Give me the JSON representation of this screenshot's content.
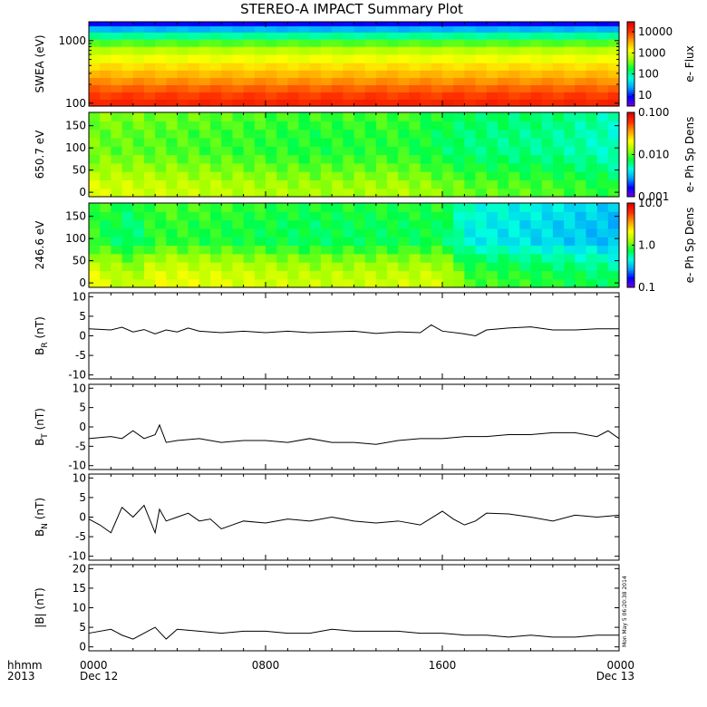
{
  "title": "STEREO-A IMPACT Summary Plot",
  "stamp": "Mon May  5 06:20:38 2014",
  "time_axis": {
    "row1": "hhmm",
    "row2": "2013",
    "ticks": [
      {
        "hour": 0,
        "label": "0000",
        "sub": "Dec 12"
      },
      {
        "hour": 8,
        "label": "0800",
        "sub": ""
      },
      {
        "hour": 16,
        "label": "1600",
        "sub": ""
      },
      {
        "hour": 24,
        "label": "0000",
        "sub": "Dec 13"
      }
    ]
  },
  "colors": {
    "axis": "#000000",
    "background": "#ffffff",
    "line": "#000000",
    "colormap": [
      "#7a00e0",
      "#0000ff",
      "#00a0ff",
      "#00ffe0",
      "#00ff40",
      "#a0ff00",
      "#ffff00",
      "#ffa000",
      "#ff3000",
      "#e00000"
    ]
  },
  "chart_data": [
    {
      "type": "heatmap",
      "ylabel": "SWEA (eV)",
      "yscale": "log",
      "ylim": [
        90,
        2000
      ],
      "yticks": [
        {
          "v": 100,
          "label": "100"
        },
        {
          "v": 1000,
          "label": "1000"
        }
      ],
      "colorbar": {
        "label": "e- Flux",
        "scale": "log",
        "range": [
          3,
          30000
        ],
        "ticks": [
          {
            "v": 10,
            "label": "10"
          },
          {
            "v": 100,
            "label": "100"
          },
          {
            "v": 1000,
            "label": "1000"
          },
          {
            "v": 10000,
            "label": "10000"
          }
        ]
      },
      "bins": [
        {
          "e": 1900,
          "v": 8
        },
        {
          "e": 1500,
          "v": 30
        },
        {
          "e": 1200,
          "v": 100
        },
        {
          "e": 900,
          "v": 300
        },
        {
          "e": 700,
          "v": 700
        },
        {
          "e": 500,
          "v": 1200
        },
        {
          "e": 380,
          "v": 2000
        },
        {
          "e": 290,
          "v": 3000
        },
        {
          "e": 220,
          "v": 4500
        },
        {
          "e": 170,
          "v": 7000
        },
        {
          "e": 130,
          "v": 10000
        },
        {
          "e": 100,
          "v": 14000
        }
      ]
    },
    {
      "type": "heatmap",
      "ylabel": "650.7 eV",
      "ylim": [
        -10,
        180
      ],
      "yticks": [
        {
          "v": 0,
          "label": "0"
        },
        {
          "v": 50,
          "label": "50"
        },
        {
          "v": 100,
          "label": "100"
        },
        {
          "v": 150,
          "label": "150"
        }
      ],
      "colorbar": {
        "label": "e- Ph Sp Dens",
        "scale": "log",
        "range": [
          0.001,
          0.1
        ],
        "ticks": [
          {
            "v": 0.001,
            "label": "0.001"
          },
          {
            "v": 0.01,
            "label": "0.010"
          },
          {
            "v": 0.1,
            "label": "0.100"
          }
        ]
      },
      "pitch_profile": [
        {
          "pa": 170,
          "v": 0.012
        },
        {
          "pa": 130,
          "v": 0.011
        },
        {
          "pa": 90,
          "v": 0.011
        },
        {
          "pa": 50,
          "v": 0.014
        },
        {
          "pa": 10,
          "v": 0.018
        }
      ],
      "time_modulation": [
        {
          "hour": 0,
          "f": 1.0
        },
        {
          "hour": 4,
          "f": 0.9
        },
        {
          "hour": 10,
          "f": 0.75
        },
        {
          "hour": 14,
          "f": 0.8
        },
        {
          "hour": 17,
          "f": 0.6
        },
        {
          "hour": 21,
          "f": 0.55
        },
        {
          "hour": 24,
          "f": 0.45
        }
      ]
    },
    {
      "type": "heatmap",
      "ylabel": "246.6 eV",
      "ylim": [
        -10,
        180
      ],
      "yticks": [
        {
          "v": 0,
          "label": "0"
        },
        {
          "v": 50,
          "label": "50"
        },
        {
          "v": 100,
          "label": "100"
        },
        {
          "v": 150,
          "label": "150"
        }
      ],
      "colorbar": {
        "label": "e- Ph Sp Dens",
        "scale": "log",
        "range": [
          0.1,
          10.0
        ],
        "ticks": [
          {
            "v": 0.1,
            "label": "0.1"
          },
          {
            "v": 1.0,
            "label": "1.0"
          },
          {
            "v": 10.0,
            "label": "10.0"
          }
        ]
      },
      "pitch_profile": [
        {
          "pa": 170,
          "v": 1.0
        },
        {
          "pa": 130,
          "v": 0.9
        },
        {
          "pa": 90,
          "v": 0.9
        },
        {
          "pa": 50,
          "v": 1.5
        },
        {
          "pa": 10,
          "v": 2.0
        }
      ],
      "time_modulation": [
        {
          "hour": 0,
          "f": 1.0
        },
        {
          "hour": 2,
          "f": 0.7
        },
        {
          "hour": 3,
          "f": 1.0
        },
        {
          "hour": 10,
          "f": 0.8
        },
        {
          "hour": 16,
          "f": 0.85
        },
        {
          "hour": 17,
          "f": 0.5
        },
        {
          "hour": 24,
          "f": 0.35
        }
      ]
    },
    {
      "type": "line",
      "ylabel": "B",
      "ysub": "R",
      "yunit": " (nT)",
      "ylim": [
        -11,
        11
      ],
      "yticks": [
        {
          "v": -10,
          "label": "-10"
        },
        {
          "v": -5,
          "label": "-5"
        },
        {
          "v": 0,
          "label": "0"
        },
        {
          "v": 5,
          "label": "5"
        },
        {
          "v": 10,
          "label": "10"
        }
      ],
      "x": [
        0,
        1,
        1.5,
        2,
        2.5,
        3,
        3.5,
        4,
        4.5,
        5,
        6,
        7,
        8,
        9,
        10,
        11,
        12,
        13,
        14,
        15,
        15.5,
        16,
        17,
        17.5,
        18,
        19,
        20,
        21,
        22,
        23,
        24
      ],
      "y": [
        1.8,
        1.5,
        2.2,
        1.0,
        1.6,
        0.5,
        1.5,
        1.0,
        2.0,
        1.2,
        0.8,
        1.2,
        0.8,
        1.2,
        0.8,
        1.0,
        1.2,
        0.6,
        1.0,
        0.8,
        2.8,
        1.2,
        0.5,
        0.0,
        1.5,
        2.0,
        2.3,
        1.5,
        1.5,
        1.8,
        1.8
      ]
    },
    {
      "type": "line",
      "ylabel": "B",
      "ysub": "T",
      "yunit": " (nT)",
      "ylim": [
        -11,
        11
      ],
      "yticks": [
        {
          "v": -10,
          "label": "-10"
        },
        {
          "v": -5,
          "label": "-5"
        },
        {
          "v": 0,
          "label": "0"
        },
        {
          "v": 5,
          "label": "5"
        },
        {
          "v": 10,
          "label": "10"
        }
      ],
      "x": [
        0,
        1,
        1.5,
        2,
        2.5,
        3,
        3.2,
        3.5,
        4,
        5,
        6,
        7,
        8,
        9,
        10,
        11,
        12,
        13,
        14,
        15,
        16,
        17,
        18,
        19,
        20,
        21,
        22,
        23,
        23.5,
        24
      ],
      "y": [
        -3.0,
        -2.5,
        -3.0,
        -1.0,
        -3.0,
        -2.0,
        0.5,
        -4.0,
        -3.5,
        -3.0,
        -4.0,
        -3.5,
        -3.5,
        -4.0,
        -3.0,
        -4.0,
        -4.0,
        -4.5,
        -3.5,
        -3.0,
        -3.0,
        -2.5,
        -2.5,
        -2.0,
        -2.0,
        -1.5,
        -1.5,
        -2.5,
        -1.0,
        -3.0
      ]
    },
    {
      "type": "line",
      "ylabel": "B",
      "ysub": "N",
      "yunit": " (nT)",
      "ylim": [
        -11,
        11
      ],
      "yticks": [
        {
          "v": -10,
          "label": "-10"
        },
        {
          "v": -5,
          "label": "-5"
        },
        {
          "v": 0,
          "label": "0"
        },
        {
          "v": 5,
          "label": "5"
        },
        {
          "v": 10,
          "label": "10"
        }
      ],
      "x": [
        0,
        0.5,
        1,
        1.5,
        2,
        2.5,
        3,
        3.2,
        3.5,
        4,
        4.5,
        5,
        5.5,
        6,
        7,
        8,
        9,
        10,
        11,
        12,
        13,
        14,
        15,
        16,
        16.5,
        17,
        17.5,
        18,
        19,
        20,
        21,
        22,
        23,
        24
      ],
      "y": [
        -0.5,
        -2.0,
        -4.0,
        2.5,
        0.0,
        3.0,
        -4.0,
        2.0,
        -1.0,
        0.0,
        1.0,
        -1.0,
        -0.5,
        -3.0,
        -1.0,
        -1.5,
        -0.5,
        -1.0,
        0.0,
        -1.0,
        -1.5,
        -1.0,
        -2.0,
        1.5,
        -0.5,
        -2.0,
        -1.0,
        1.0,
        0.8,
        0.0,
        -1.0,
        0.5,
        0.0,
        0.5
      ]
    },
    {
      "type": "line",
      "ylabel": "|B|",
      "ysub": "",
      "yunit": " (nT)",
      "ylim": [
        -1,
        21
      ],
      "yticks": [
        {
          "v": 0,
          "label": "0"
        },
        {
          "v": 5,
          "label": "5"
        },
        {
          "v": 10,
          "label": "10"
        },
        {
          "v": 15,
          "label": "15"
        },
        {
          "v": 20,
          "label": "20"
        }
      ],
      "x": [
        0,
        1,
        1.5,
        2,
        2.5,
        3,
        3.5,
        4,
        5,
        6,
        7,
        8,
        9,
        10,
        11,
        12,
        13,
        14,
        15,
        16,
        17,
        18,
        19,
        20,
        21,
        22,
        23,
        24
      ],
      "y": [
        3.5,
        4.5,
        3.0,
        2.0,
        3.5,
        5.0,
        2.0,
        4.5,
        4.0,
        3.5,
        4.0,
        4.0,
        3.5,
        3.5,
        4.5,
        4.0,
        4.0,
        4.0,
        3.5,
        3.5,
        3.0,
        3.0,
        2.5,
        3.0,
        2.5,
        2.5,
        3.0,
        3.0
      ]
    }
  ]
}
